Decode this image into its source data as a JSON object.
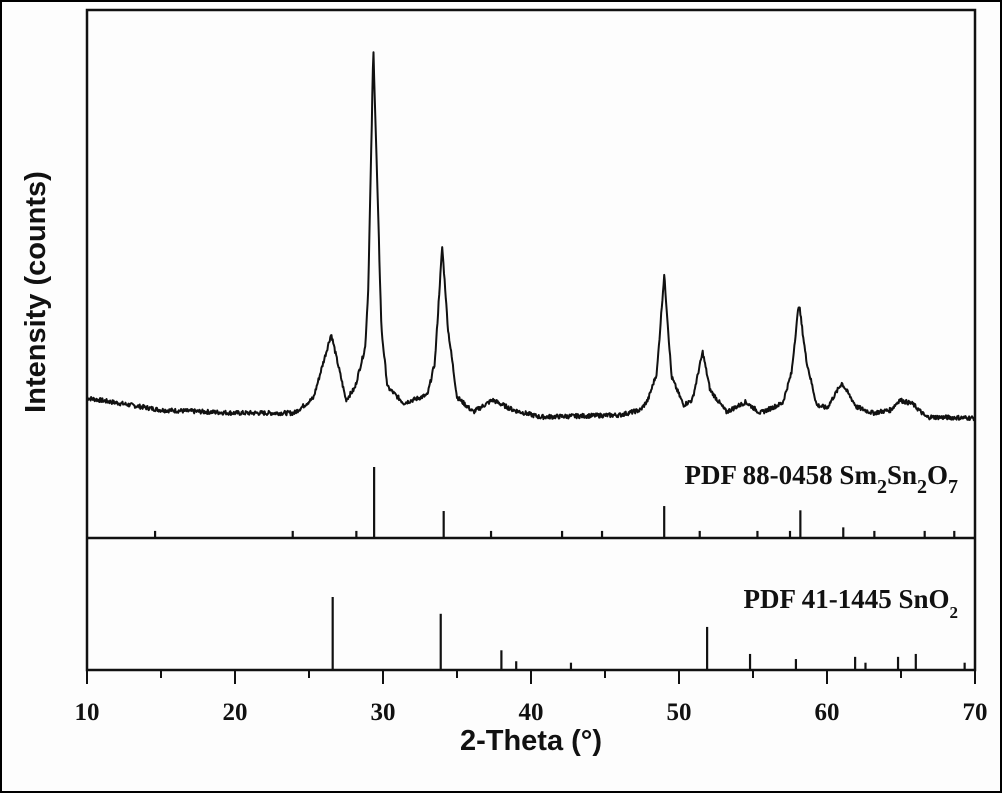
{
  "chart_data": [
    {
      "type": "line",
      "panel": "top",
      "xlabel": "2-Theta (°)",
      "ylabel": "Intensity (counts)",
      "xlim": [
        10,
        70
      ],
      "ylim": [
        0,
        5280
      ],
      "x_ticks": [
        10,
        20,
        30,
        40,
        50,
        60,
        70
      ],
      "x_tick_labels": [
        "10",
        "20",
        "30",
        "40",
        "50",
        "60",
        "70"
      ],
      "y_ticks_shown": false,
      "grid": false,
      "color": "#111111",
      "x": [
        10,
        15,
        20,
        24,
        25.3,
        26.5,
        27.5,
        28.1,
        28.8,
        29.0,
        29.35,
        29.7,
        29.9,
        30.3,
        31.4,
        33.0,
        33.5,
        34.0,
        34.4,
        35.0,
        36.1,
        37.4,
        38.8,
        40.6,
        46.0,
        47.4,
        47.9,
        48.5,
        49.0,
        49.5,
        50.3,
        50.9,
        51.6,
        52.1,
        53.2,
        54.5,
        55.5,
        57.0,
        57.6,
        58.1,
        58.6,
        59.3,
        60.0,
        61.0,
        62.0,
        63.1,
        64.3,
        64.9,
        65.8,
        66.7,
        69.9
      ],
      "y": [
        1400,
        1280,
        1250,
        1250,
        1400,
        2040,
        1380,
        1500,
        1910,
        2480,
        4900,
        3080,
        2080,
        1510,
        1350,
        1430,
        1750,
        2910,
        2080,
        1410,
        1260,
        1380,
        1280,
        1210,
        1230,
        1280,
        1380,
        1650,
        2630,
        1610,
        1330,
        1380,
        1860,
        1480,
        1260,
        1360,
        1250,
        1350,
        1650,
        2350,
        1780,
        1330,
        1300,
        1550,
        1310,
        1250,
        1280,
        1380,
        1340,
        1210,
        1200
      ]
    },
    {
      "type": "bar",
      "panel": "reference-1",
      "label": {
        "main": "PDF 88-0458 Sm",
        "sub1": "2",
        "mid": "Sn",
        "sub2": "2",
        "end": "O",
        "sub3": "7"
      },
      "x": [
        14.6,
        23.9,
        28.2,
        29.4,
        34.1,
        37.3,
        42.1,
        44.8,
        49.0,
        51.4,
        55.3,
        57.5,
        58.2,
        61.1,
        63.2,
        66.6,
        68.6
      ],
      "values": [
        10,
        10,
        10,
        100,
        38,
        10,
        10,
        10,
        45,
        10,
        10,
        10,
        39,
        15,
        10,
        10,
        10
      ],
      "ylim": [
        0,
        100
      ]
    },
    {
      "type": "bar",
      "panel": "reference-2",
      "label": {
        "main": "PDF 41-1445 SnO",
        "sub1": "2"
      },
      "x": [
        26.6,
        33.9,
        38.0,
        39.0,
        42.7,
        51.9,
        54.8,
        57.9,
        61.9,
        62.6,
        64.8,
        66.0,
        69.3
      ],
      "values": [
        100,
        77,
        27,
        12,
        10,
        59,
        22,
        15,
        18,
        10,
        18,
        22,
        10
      ],
      "ylim": [
        0,
        100
      ]
    }
  ]
}
